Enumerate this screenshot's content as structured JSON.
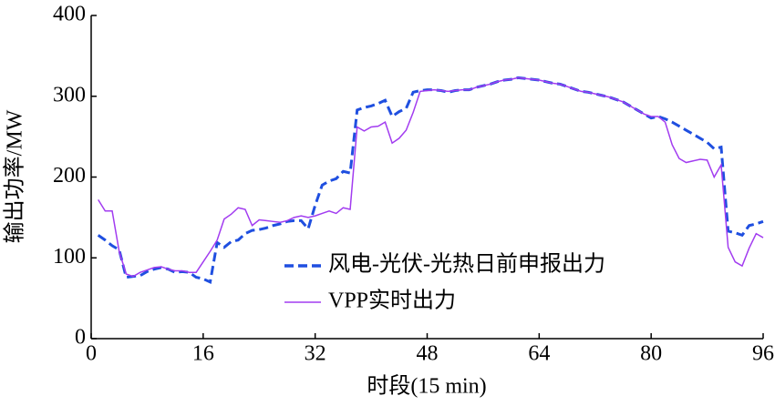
{
  "chart_data": {
    "type": "line",
    "xlabel": "时段(15 min)",
    "ylabel": "输出功率/MW",
    "x": [
      1,
      2,
      3,
      4,
      5,
      6,
      7,
      8,
      9,
      10,
      11,
      12,
      13,
      14,
      15,
      16,
      17,
      18,
      19,
      20,
      21,
      22,
      23,
      24,
      25,
      26,
      27,
      28,
      29,
      30,
      31,
      32,
      33,
      34,
      35,
      36,
      37,
      38,
      39,
      40,
      41,
      42,
      43,
      44,
      45,
      46,
      47,
      48,
      49,
      50,
      51,
      52,
      53,
      54,
      55,
      56,
      57,
      58,
      59,
      60,
      61,
      62,
      63,
      64,
      65,
      66,
      67,
      68,
      69,
      70,
      71,
      72,
      73,
      74,
      75,
      76,
      77,
      78,
      79,
      80,
      81,
      82,
      83,
      84,
      85,
      86,
      87,
      88,
      89,
      90,
      91,
      92,
      93,
      94,
      95,
      96
    ],
    "series": [
      {
        "name": "风电-光伏-光热日前申报出力",
        "color": "#1f4fe0",
        "dash": true,
        "values": [
          128,
          122,
          115,
          110,
          76,
          77,
          78,
          83,
          86,
          88,
          86,
          82,
          83,
          82,
          76,
          74,
          70,
          119,
          113,
          120,
          122,
          130,
          134,
          135,
          137,
          140,
          142,
          145,
          146,
          146,
          136,
          165,
          190,
          195,
          198,
          207,
          205,
          283,
          286,
          288,
          291,
          295,
          275,
          281,
          285,
          305,
          307,
          308,
          308,
          307,
          305,
          307,
          308,
          308,
          311,
          313,
          315,
          318,
          320,
          321,
          323,
          322,
          321,
          320,
          318,
          316,
          315,
          312,
          309,
          306,
          305,
          303,
          301,
          299,
          296,
          293,
          288,
          283,
          278,
          273,
          275,
          272,
          268,
          263,
          258,
          253,
          248,
          243,
          235,
          237,
          133,
          131,
          128,
          140,
          142,
          145
        ]
      },
      {
        "name": "VPP实时出力",
        "color": "#a23cf0",
        "dash": false,
        "values": [
          172,
          158,
          158,
          108,
          80,
          77,
          82,
          85,
          88,
          89,
          86,
          84,
          84,
          82,
          82,
          95,
          108,
          122,
          148,
          154,
          162,
          160,
          140,
          147,
          146,
          145,
          144,
          146,
          150,
          152,
          150,
          152,
          155,
          158,
          155,
          162,
          160,
          262,
          257,
          262,
          263,
          268,
          242,
          248,
          258,
          280,
          306,
          307,
          308,
          307,
          306,
          307,
          308,
          308,
          311,
          313,
          315,
          318,
          320,
          321,
          323,
          322,
          321,
          320,
          318,
          316,
          315,
          312,
          309,
          306,
          305,
          303,
          301,
          299,
          296,
          293,
          288,
          283,
          278,
          275,
          275,
          268,
          240,
          223,
          218,
          220,
          222,
          221,
          200,
          215,
          113,
          95,
          90,
          112,
          130,
          125
        ]
      }
    ],
    "xlim": [
      0,
      96
    ],
    "xticks": [
      0,
      16,
      32,
      48,
      64,
      80,
      96
    ],
    "ylim": [
      0,
      400
    ],
    "yticks": [
      0,
      100,
      200,
      300,
      400
    ],
    "legend": "lower center"
  }
}
